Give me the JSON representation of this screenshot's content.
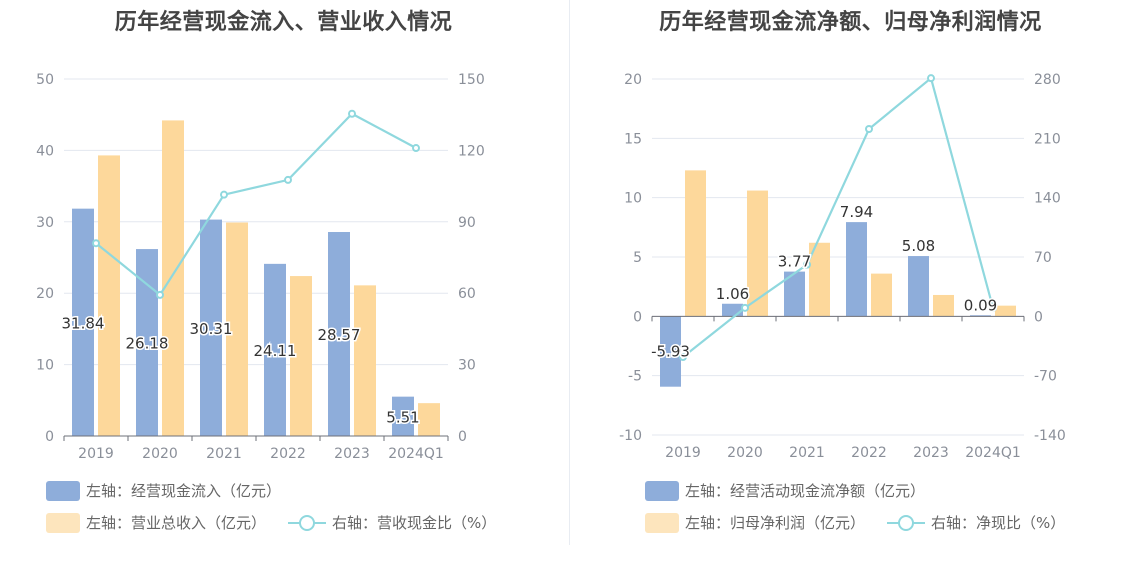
{
  "chart_data": [
    {
      "type": "bar",
      "title": "历年经营现金流入、营业收入情况",
      "categories": [
        "2019",
        "2020",
        "2021",
        "2022",
        "2023",
        "2024Q1"
      ],
      "left_axis": {
        "ylim": [
          0,
          50
        ],
        "ticks": [
          "0",
          "10",
          "20",
          "30",
          "40",
          "50"
        ]
      },
      "right_axis": {
        "ylim": [
          0,
          150
        ],
        "ticks": [
          "0",
          "30",
          "60",
          "90",
          "120",
          "150"
        ]
      },
      "series": [
        {
          "name": "左轴：经营现金流入（亿元）",
          "kind": "bar",
          "axis": "left",
          "color": "#8eadda",
          "values": [
            31.84,
            26.18,
            30.31,
            24.11,
            28.57,
            5.51
          ],
          "labels": [
            "31.84",
            "26.18",
            "30.31",
            "24.11",
            "28.57",
            "5.51"
          ]
        },
        {
          "name": "左轴：营业总收入（亿元）",
          "kind": "bar",
          "axis": "left",
          "color": "#fdd89b",
          "values": [
            39.3,
            44.2,
            29.9,
            22.4,
            21.1,
            4.6
          ]
        },
        {
          "name": "右轴：营收现金比（%）",
          "kind": "line",
          "axis": "right",
          "color": "#8fd8de",
          "values": [
            81.0,
            59.3,
            101.4,
            107.6,
            135.4,
            121.0
          ]
        }
      ],
      "grid": true,
      "legend_position": "bottom-left"
    },
    {
      "type": "bar",
      "title": "历年经营现金流净额、归母净利润情况",
      "categories": [
        "2019",
        "2020",
        "2021",
        "2022",
        "2023",
        "2024Q1"
      ],
      "left_axis": {
        "ylim": [
          -10,
          20
        ],
        "ticks": [
          "-10",
          "-5",
          "0",
          "5",
          "10",
          "15",
          "20"
        ]
      },
      "right_axis": {
        "ylim": [
          -140,
          280
        ],
        "ticks": [
          "-140",
          "-70",
          "0",
          "70",
          "140",
          "210",
          "280"
        ]
      },
      "series": [
        {
          "name": "左轴：经营活动现金流净额（亿元）",
          "kind": "bar",
          "axis": "left",
          "color": "#8eadda",
          "values": [
            -5.93,
            1.06,
            3.77,
            7.94,
            5.08,
            0.09
          ],
          "labels": [
            "-5.93",
            "1.06",
            "3.77",
            "7.94",
            "5.08",
            "0.09"
          ]
        },
        {
          "name": "左轴：归母净利润（亿元）",
          "kind": "bar",
          "axis": "left",
          "color": "#fdd89b",
          "values": [
            12.3,
            10.6,
            6.2,
            3.6,
            1.8,
            0.9
          ]
        },
        {
          "name": "右轴：净现比（%）",
          "kind": "line",
          "axis": "right",
          "color": "#8fd8de",
          "values": [
            -48.0,
            10.0,
            61.0,
            221.0,
            281.0,
            10.0
          ]
        }
      ],
      "grid": true,
      "legend_position": "bottom-left"
    }
  ]
}
